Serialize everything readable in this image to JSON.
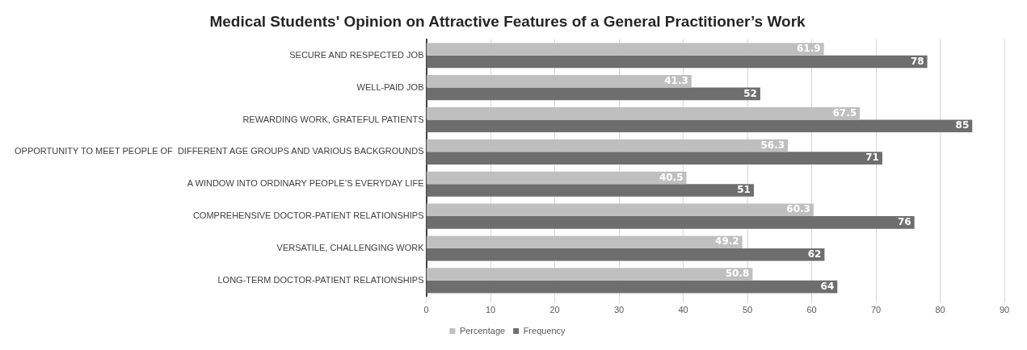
{
  "chart_data": {
    "type": "bar",
    "orientation": "horizontal",
    "title": "Medical Students' Opinion on Attractive Features of a General Practitioner’s Work",
    "categories": [
      "SECURE AND RESPECTED JOB",
      "WELL-PAID JOB",
      "REWARDING WORK, GRATEFUL PATIENTS",
      "OPPORTUNITY TO MEET PEOPLE OF  DIFFERENT AGE GROUPS AND VARIOUS BACKGROUNDS",
      "A WINDOW INTO ORDINARY PEOPLE’S EVERYDAY LIFE",
      "COMPREHENSIVE DOCTOR-PATIENT RELATIONSHIPS",
      "VERSATILE, CHALLENGING WORK",
      "LONG-TERM DOCTOR-PATIENT RELATIONSHIPS"
    ],
    "series": [
      {
        "name": "Percentage",
        "color": "#bfbfbf",
        "values": [
          61.9,
          41.3,
          67.5,
          56.3,
          40.5,
          60.3,
          49.2,
          50.8
        ]
      },
      {
        "name": "Frequency",
        "color": "#6e6e6e",
        "values": [
          78,
          52,
          85,
          71,
          51,
          76,
          62,
          64
        ]
      }
    ],
    "xlim": [
      0,
      90
    ],
    "xticks": [
      0,
      10,
      20,
      30,
      40,
      50,
      60,
      70,
      80,
      90
    ],
    "grid": "x",
    "legend": "bottom",
    "data_labels": true
  }
}
